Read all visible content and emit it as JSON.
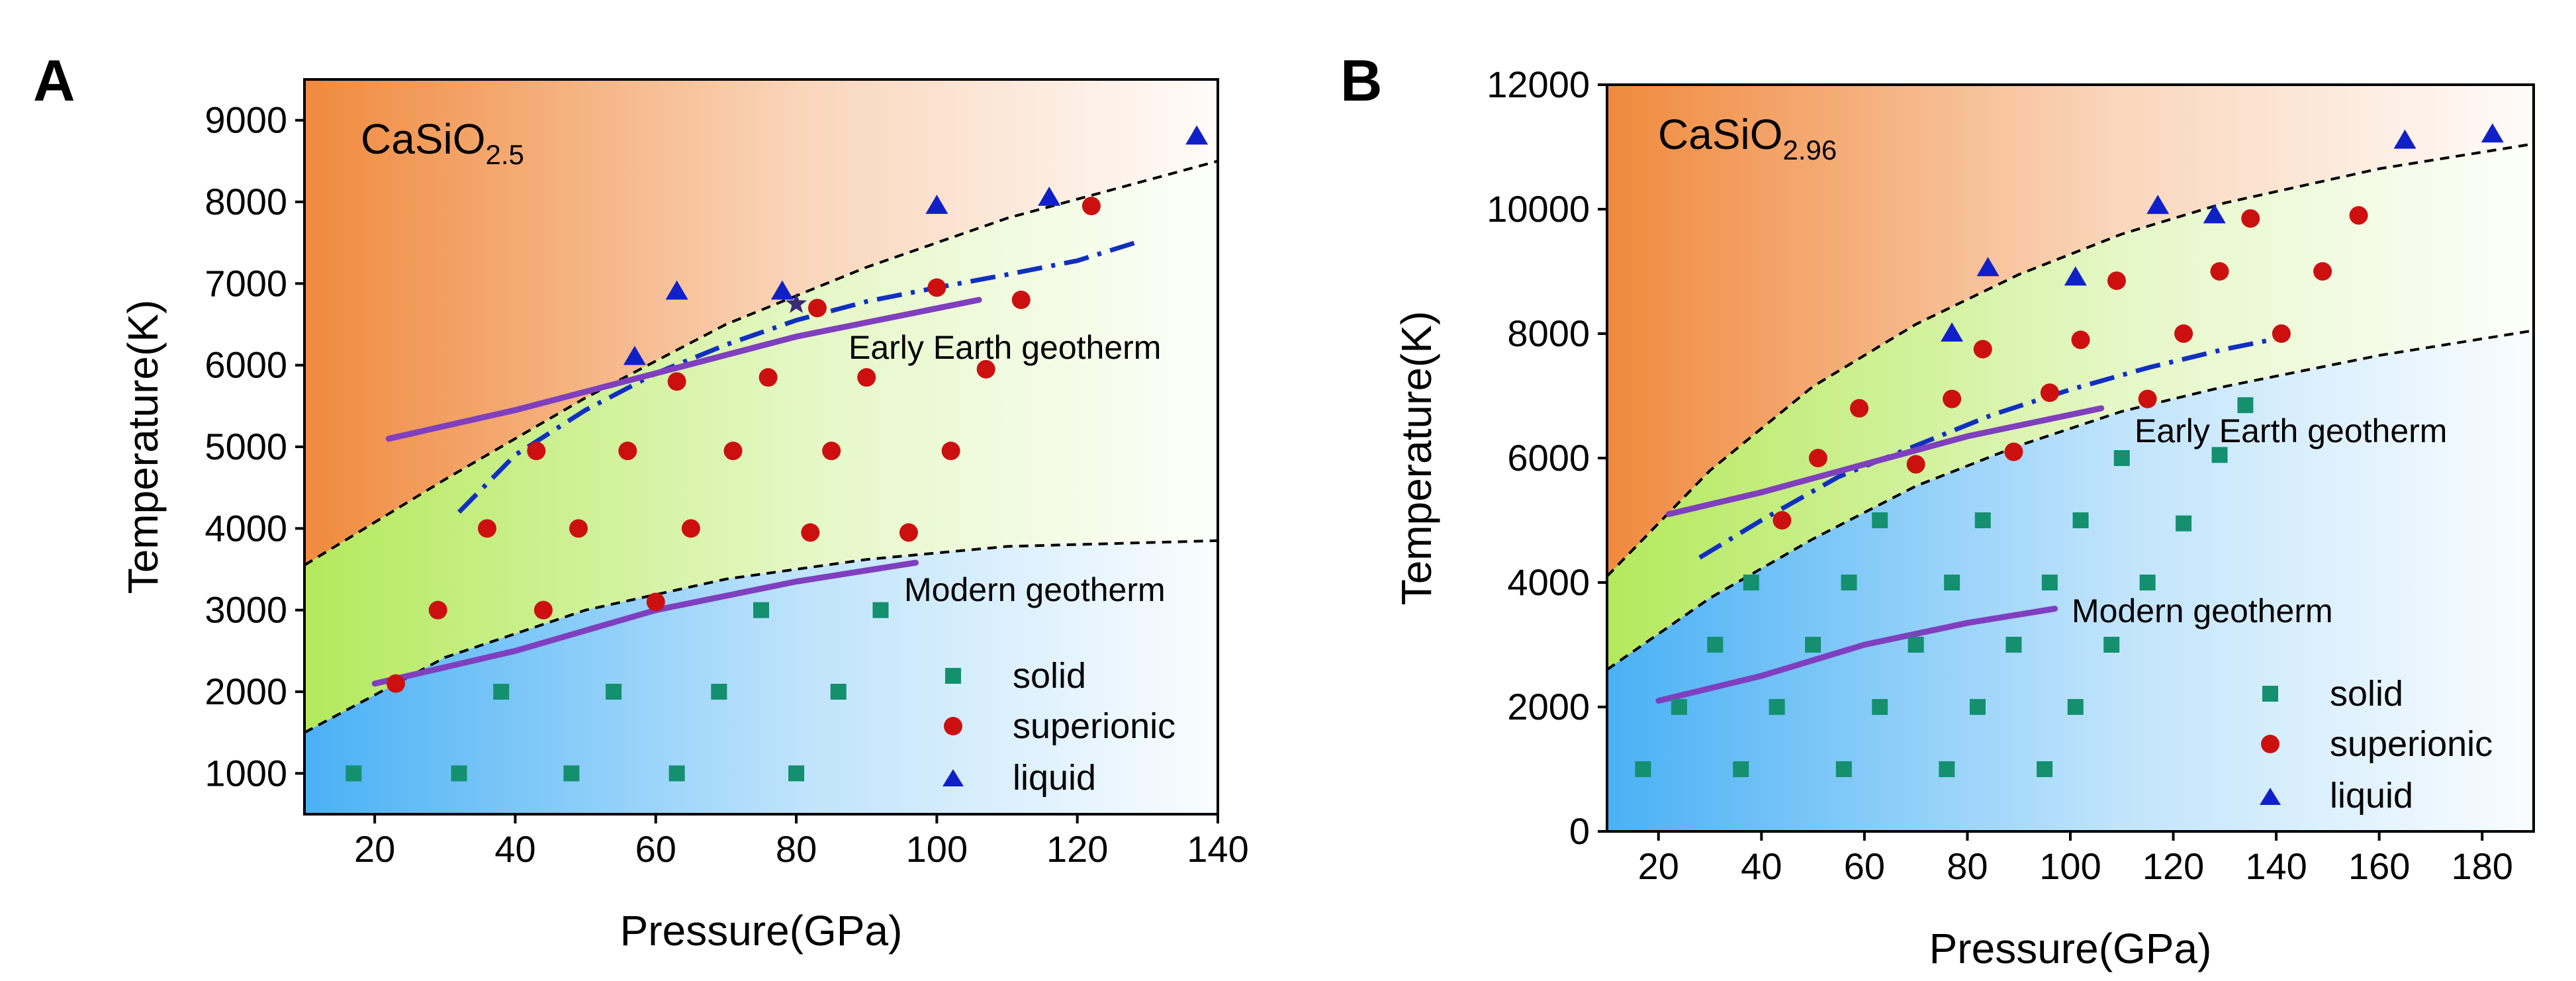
{
  "colors": {
    "solid": "#14906f",
    "superionic": "#cc1010",
    "liquid": "#1020c8",
    "geotherm": "#7f3fbf",
    "melt_line": "#1030c0",
    "boundary": "#000000",
    "liquid_region": "#f08a3e",
    "superionic_region": "#b4e95c",
    "solid_region": "#4ab1f5",
    "axis": "#000000"
  },
  "chart_data": [
    {
      "panel_label": "A",
      "type": "scatter",
      "title": "CaSiO",
      "title_sub": "2.5",
      "xlabel": "Pressure(GPa)",
      "ylabel": "Temperature(K)",
      "xlim": [
        10,
        140
      ],
      "ylim": [
        500,
        9500
      ],
      "xticks": [
        20,
        40,
        60,
        80,
        100,
        120,
        140
      ],
      "yticks": [
        1000,
        2000,
        3000,
        4000,
        5000,
        6000,
        7000,
        8000,
        9000
      ],
      "grid": false,
      "legend_position": "bottom-right",
      "legend": [
        "solid",
        "superionic",
        "liquid"
      ],
      "series": [
        {
          "name": "solid",
          "marker": "square",
          "x": [
            17,
            32,
            48,
            63,
            80,
            38,
            54,
            69,
            86,
            75,
            92
          ],
          "y": [
            1000,
            1000,
            1000,
            1000,
            1000,
            2000,
            2000,
            2000,
            2000,
            3000,
            3000
          ]
        },
        {
          "name": "superionic",
          "marker": "circle",
          "x": [
            23,
            29,
            44,
            36,
            49,
            60,
            43,
            56,
            71,
            85,
            65,
            82,
            96,
            63,
            76,
            90,
            102,
            83,
            100,
            107,
            112,
            122
          ],
          "y": [
            2100,
            3000,
            3000,
            4000,
            4000,
            3100,
            4950,
            4950,
            4950,
            4950,
            4000,
            3950,
            3950,
            5800,
            5850,
            5850,
            4950,
            6700,
            6950,
            5950,
            6800,
            7950
          ]
        },
        {
          "name": "liquid",
          "marker": "triangle",
          "x": [
            57,
            63,
            78,
            100,
            116,
            137
          ],
          "y": [
            6100,
            6900,
            6900,
            7950,
            8050,
            8800
          ]
        }
      ],
      "star": {
        "x": 80,
        "y": 6750
      },
      "boundaries": {
        "upper": {
          "x": [
            10,
            30,
            50,
            70,
            90,
            110,
            140
          ],
          "y": [
            3550,
            4600,
            5600,
            6500,
            7200,
            7800,
            8500
          ]
        },
        "lower": {
          "x": [
            10,
            30,
            50,
            70,
            90,
            110,
            140
          ],
          "y": [
            1500,
            2420,
            3000,
            3380,
            3620,
            3780,
            3850
          ]
        }
      },
      "melting_line": {
        "x": [
          32,
          40,
          50,
          60,
          70,
          80,
          90,
          100,
          110,
          120,
          129
        ],
        "y": [
          4200,
          4900,
          5450,
          5900,
          6250,
          6550,
          6780,
          6950,
          7110,
          7280,
          7520
        ]
      },
      "geotherms": [
        {
          "name": "Early Earth geotherm",
          "x": [
            22,
            40,
            60,
            80,
            106
          ],
          "y": [
            5100,
            5450,
            5900,
            6350,
            6800
          ]
        },
        {
          "name": "Modern geotherm",
          "x": [
            20,
            40,
            60,
            80,
            97
          ],
          "y": [
            2100,
            2500,
            3000,
            3350,
            3580
          ]
        }
      ],
      "annotations": {
        "early_geotherm": "Early Earth geotherm",
        "modern_geotherm": "Modern geotherm"
      }
    },
    {
      "panel_label": "B",
      "type": "scatter",
      "title": "CaSiO",
      "title_sub": "2.96",
      "xlabel": "Pressure(GPa)",
      "ylabel": "Temperature(K)",
      "xlim": [
        10,
        190
      ],
      "ylim": [
        0,
        12000
      ],
      "xticks": [
        20,
        40,
        60,
        80,
        100,
        120,
        140,
        160,
        180
      ],
      "yticks": [
        0,
        2000,
        4000,
        6000,
        8000,
        10000,
        12000
      ],
      "grid": false,
      "legend_position": "bottom-right",
      "legend": [
        "solid",
        "superionic",
        "liquid"
      ],
      "series": [
        {
          "name": "solid",
          "marker": "square",
          "x": [
            17,
            36,
            56,
            76,
            95,
            24,
            43,
            63,
            82,
            101,
            31,
            50,
            70,
            89,
            108,
            38,
            57,
            77,
            96,
            115,
            63,
            83,
            102,
            122,
            110,
            129,
            134
          ],
          "y": [
            1000,
            1000,
            1000,
            1000,
            1000,
            2000,
            2000,
            2000,
            2000,
            2000,
            3000,
            3000,
            3000,
            3000,
            3000,
            4000,
            4000,
            4000,
            4000,
            4000,
            5000,
            5000,
            5000,
            4950,
            6000,
            6050,
            6850
          ]
        },
        {
          "name": "superionic",
          "marker": "circle",
          "x": [
            44,
            51,
            59,
            70,
            77,
            89,
            96,
            83,
            102,
            115,
            122,
            141,
            109,
            129,
            135,
            149,
            156
          ],
          "y": [
            5000,
            6000,
            6800,
            5900,
            6950,
            6100,
            7050,
            7750,
            7900,
            6950,
            8000,
            8000,
            8850,
            9000,
            9850,
            9000,
            9900
          ]
        },
        {
          "name": "liquid",
          "marker": "triangle",
          "x": [
            77,
            84,
            101,
            117,
            128,
            165,
            182
          ],
          "y": [
            8000,
            9050,
            8900,
            10050,
            9900,
            11100,
            11200
          ]
        }
      ],
      "boundaries": {
        "upper": {
          "x": [
            10,
            30,
            50,
            70,
            90,
            110,
            130,
            160,
            190
          ],
          "y": [
            4100,
            5800,
            7150,
            8150,
            8950,
            9600,
            10100,
            10650,
            11050
          ]
        },
        "lower": {
          "x": [
            10,
            30,
            50,
            70,
            90,
            110,
            130,
            160,
            190
          ],
          "y": [
            2600,
            3750,
            4700,
            5550,
            6200,
            6750,
            7150,
            7650,
            8050
          ]
        }
      },
      "melting_line": {
        "x": [
          28,
          40,
          55,
          70,
          85,
          100,
          115,
          130,
          142
        ],
        "y": [
          4400,
          5000,
          5700,
          6200,
          6700,
          7100,
          7450,
          7750,
          7950
        ]
      },
      "geotherms": [
        {
          "name": "Early Earth geotherm",
          "x": [
            22,
            40,
            60,
            80,
            106
          ],
          "y": [
            5100,
            5450,
            5900,
            6350,
            6800
          ]
        },
        {
          "name": "Modern geotherm",
          "x": [
            20,
            40,
            60,
            80,
            97
          ],
          "y": [
            2100,
            2500,
            3000,
            3350,
            3580
          ]
        }
      ],
      "annotations": {
        "early_geotherm": "Early Earth geotherm",
        "modern_geotherm": "Modern geotherm"
      }
    }
  ]
}
